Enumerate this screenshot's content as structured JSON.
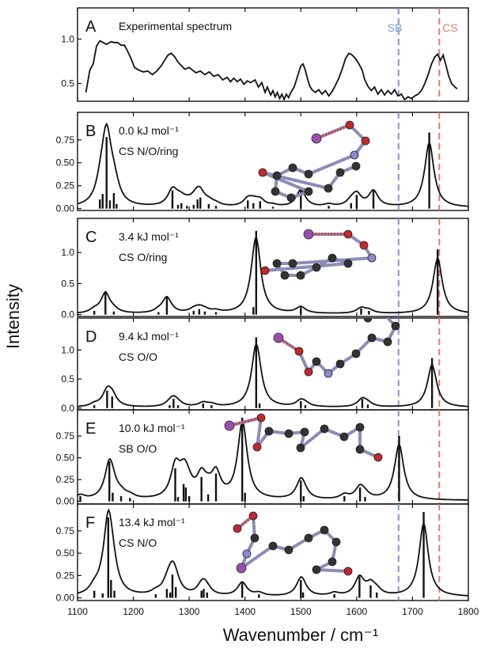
{
  "chart_data": {
    "type": "line",
    "xlabel": "Wavenumber / cm⁻¹",
    "ylabel": "Intensity",
    "xlim": [
      1100,
      1800
    ],
    "x_ticks": [
      "1100",
      "1200",
      "1300",
      "1400",
      "1500",
      "1600",
      "1700",
      "1800"
    ],
    "reference_lines": [
      {
        "label": "SB",
        "x": 1675,
        "color": "#7f96d6"
      },
      {
        "label": "CS",
        "x": 1748,
        "color": "#e47a6a"
      }
    ],
    "panels": [
      {
        "letter": "A",
        "label": "Experimental spectrum",
        "conformer": "",
        "ylim": [
          0.3,
          1.35
        ],
        "y_ticks": [
          "0.5",
          "1.0"
        ],
        "y_tick_values": [
          0.5,
          1.0
        ],
        "experimental": [
          [
            1115,
            0.4
          ],
          [
            1122,
            0.65
          ],
          [
            1128,
            0.72
          ],
          [
            1134,
            0.92
          ],
          [
            1140,
            0.98
          ],
          [
            1146,
            0.96
          ],
          [
            1152,
            0.94
          ],
          [
            1160,
            0.97
          ],
          [
            1166,
            0.96
          ],
          [
            1172,
            0.96
          ],
          [
            1178,
            0.93
          ],
          [
            1184,
            0.93
          ],
          [
            1190,
            0.86
          ],
          [
            1196,
            0.78
          ],
          [
            1202,
            0.68
          ],
          [
            1210,
            0.65
          ],
          [
            1218,
            0.63
          ],
          [
            1226,
            0.64
          ],
          [
            1234,
            0.6
          ],
          [
            1242,
            0.64
          ],
          [
            1250,
            0.7
          ],
          [
            1256,
            0.76
          ],
          [
            1262,
            0.82
          ],
          [
            1268,
            0.84
          ],
          [
            1274,
            0.8
          ],
          [
            1280,
            0.74
          ],
          [
            1286,
            0.7
          ],
          [
            1292,
            0.66
          ],
          [
            1300,
            0.68
          ],
          [
            1306,
            0.65
          ],
          [
            1312,
            0.62
          ],
          [
            1320,
            0.64
          ],
          [
            1328,
            0.6
          ],
          [
            1336,
            0.63
          ],
          [
            1344,
            0.58
          ],
          [
            1352,
            0.6
          ],
          [
            1360,
            0.54
          ],
          [
            1368,
            0.57
          ],
          [
            1374,
            0.52
          ],
          [
            1380,
            0.56
          ],
          [
            1386,
            0.52
          ],
          [
            1392,
            0.55
          ],
          [
            1398,
            0.49
          ],
          [
            1404,
            0.53
          ],
          [
            1410,
            0.51
          ],
          [
            1418,
            0.54
          ],
          [
            1424,
            0.46
          ],
          [
            1430,
            0.51
          ],
          [
            1436,
            0.4
          ],
          [
            1440,
            0.46
          ],
          [
            1446,
            0.37
          ],
          [
            1450,
            0.42
          ],
          [
            1454,
            0.35
          ],
          [
            1458,
            0.4
          ],
          [
            1462,
            0.33
          ],
          [
            1466,
            0.38
          ],
          [
            1470,
            0.32
          ],
          [
            1474,
            0.38
          ],
          [
            1478,
            0.34
          ],
          [
            1482,
            0.4
          ],
          [
            1488,
            0.46
          ],
          [
            1494,
            0.58
          ],
          [
            1500,
            0.7
          ],
          [
            1504,
            0.72
          ],
          [
            1508,
            0.65
          ],
          [
            1512,
            0.55
          ],
          [
            1516,
            0.47
          ],
          [
            1520,
            0.43
          ],
          [
            1526,
            0.4
          ],
          [
            1532,
            0.43
          ],
          [
            1538,
            0.38
          ],
          [
            1544,
            0.42
          ],
          [
            1550,
            0.36
          ],
          [
            1556,
            0.41
          ],
          [
            1562,
            0.48
          ],
          [
            1568,
            0.56
          ],
          [
            1574,
            0.66
          ],
          [
            1580,
            0.78
          ],
          [
            1586,
            0.84
          ],
          [
            1592,
            0.82
          ],
          [
            1598,
            0.78
          ],
          [
            1604,
            0.72
          ],
          [
            1610,
            0.65
          ],
          [
            1614,
            0.55
          ],
          [
            1620,
            0.47
          ],
          [
            1626,
            0.42
          ],
          [
            1632,
            0.46
          ],
          [
            1638,
            0.38
          ],
          [
            1644,
            0.43
          ],
          [
            1650,
            0.37
          ],
          [
            1656,
            0.42
          ],
          [
            1662,
            0.38
          ],
          [
            1668,
            0.43
          ],
          [
            1674,
            0.36
          ],
          [
            1680,
            0.38
          ],
          [
            1686,
            0.32
          ],
          [
            1692,
            0.35
          ],
          [
            1698,
            0.33
          ],
          [
            1704,
            0.36
          ],
          [
            1710,
            0.38
          ],
          [
            1716,
            0.42
          ],
          [
            1722,
            0.5
          ],
          [
            1728,
            0.6
          ],
          [
            1734,
            0.72
          ],
          [
            1740,
            0.8
          ],
          [
            1745,
            0.83
          ],
          [
            1750,
            0.76
          ],
          [
            1755,
            0.82
          ],
          [
            1760,
            0.7
          ],
          [
            1765,
            0.58
          ],
          [
            1770,
            0.5
          ],
          [
            1776,
            0.46
          ],
          [
            1780,
            0.44
          ]
        ],
        "sticks": [],
        "molecule": ""
      },
      {
        "letter": "B",
        "label": "0.0 kJ mol⁻¹",
        "conformer": "CS N/O/ring",
        "ylim": [
          -0.02,
          1.05
        ],
        "y_ticks": [
          "0.00",
          "0.25",
          "0.50",
          "0.75"
        ],
        "y_tick_values": [
          0.0,
          0.25,
          0.5,
          0.75
        ],
        "sticks": [
          [
            1140,
            0.1
          ],
          [
            1145,
            0.16
          ],
          [
            1152,
            0.78
          ],
          [
            1158,
            0.09
          ],
          [
            1165,
            0.17
          ],
          [
            1170,
            0.05
          ],
          [
            1270,
            0.2
          ],
          [
            1280,
            0.04
          ],
          [
            1286,
            0.06
          ],
          [
            1296,
            0.03
          ],
          [
            1308,
            0.04
          ],
          [
            1315,
            0.1
          ],
          [
            1320,
            0.12
          ],
          [
            1335,
            0.05
          ],
          [
            1348,
            0.03
          ],
          [
            1405,
            0.09
          ],
          [
            1415,
            0.06
          ],
          [
            1427,
            0.08
          ],
          [
            1450,
            0.02
          ],
          [
            1500,
            0.22
          ],
          [
            1550,
            0.03
          ],
          [
            1590,
            0.06
          ],
          [
            1600,
            0.15
          ],
          [
            1630,
            0.2
          ],
          [
            1730,
            0.83
          ]
        ],
        "molecule": "B"
      },
      {
        "letter": "C",
        "label": "3.4 kJ mol⁻¹",
        "conformer": "CS O/ring",
        "ylim": [
          -0.03,
          1.55
        ],
        "y_ticks": [
          "0.0",
          "0.5",
          "1.0"
        ],
        "y_tick_values": [
          0.0,
          0.5,
          1.0
        ],
        "sticks": [
          [
            1130,
            0.06
          ],
          [
            1150,
            0.38
          ],
          [
            1165,
            0.05
          ],
          [
            1245,
            0.04
          ],
          [
            1260,
            0.3
          ],
          [
            1308,
            0.06
          ],
          [
            1318,
            0.09
          ],
          [
            1328,
            0.05
          ],
          [
            1348,
            0.04
          ],
          [
            1420,
            1.35
          ],
          [
            1415,
            0.12
          ],
          [
            1500,
            0.12
          ],
          [
            1608,
            0.1
          ],
          [
            1622,
            0.06
          ],
          [
            1745,
            1.05
          ]
        ],
        "molecule": "C"
      },
      {
        "letter": "D",
        "label": "9.4 kJ mol⁻¹",
        "conformer": "CS O/O",
        "ylim": [
          -0.03,
          1.55
        ],
        "y_ticks": [
          "0.0",
          "0.5",
          "1.0"
        ],
        "y_tick_values": [
          0.0,
          0.5,
          1.0
        ],
        "sticks": [
          [
            1130,
            0.05
          ],
          [
            1153,
            0.3
          ],
          [
            1162,
            0.2
          ],
          [
            1265,
            0.05
          ],
          [
            1272,
            0.16
          ],
          [
            1280,
            0.05
          ],
          [
            1325,
            0.08
          ],
          [
            1340,
            0.05
          ],
          [
            1420,
            1.22
          ],
          [
            1426,
            0.08
          ],
          [
            1500,
            0.12
          ],
          [
            1508,
            0.05
          ],
          [
            1610,
            0.16
          ],
          [
            1620,
            0.06
          ],
          [
            1735,
            0.86
          ]
        ],
        "molecule": "D"
      },
      {
        "letter": "E",
        "label": "10.0 kJ mol⁻¹",
        "conformer": "SB O/O",
        "ylim": [
          -0.03,
          1.05
        ],
        "y_ticks": [
          "0.00",
          "0.25",
          "0.50",
          "0.75"
        ],
        "y_tick_values": [
          0.0,
          0.25,
          0.5,
          0.75
        ],
        "sticks": [
          [
            1105,
            0.06
          ],
          [
            1157,
            0.46
          ],
          [
            1163,
            0.1
          ],
          [
            1178,
            0.06
          ],
          [
            1194,
            0.04
          ],
          [
            1275,
            0.38
          ],
          [
            1280,
            0.05
          ],
          [
            1290,
            0.2
          ],
          [
            1294,
            0.16
          ],
          [
            1300,
            0.06
          ],
          [
            1322,
            0.28
          ],
          [
            1334,
            0.08
          ],
          [
            1348,
            0.32
          ],
          [
            1395,
            0.96
          ],
          [
            1400,
            0.1
          ],
          [
            1500,
            0.24
          ],
          [
            1505,
            0.06
          ],
          [
            1578,
            0.06
          ],
          [
            1606,
            0.16
          ],
          [
            1615,
            0.05
          ],
          [
            1676,
            0.75
          ]
        ],
        "molecule": "E"
      },
      {
        "letter": "F",
        "label": "13.4 kJ mol⁻¹",
        "conformer": "CS N/O",
        "ylim": [
          -0.03,
          1.05
        ],
        "y_ticks": [
          "0.00",
          "0.25",
          "0.50",
          "0.75"
        ],
        "y_tick_values": [
          0.0,
          0.25,
          0.5,
          0.75
        ],
        "sticks": [
          [
            1130,
            0.08
          ],
          [
            1145,
            0.05
          ],
          [
            1155,
            0.9
          ],
          [
            1160,
            0.2
          ],
          [
            1166,
            0.08
          ],
          [
            1240,
            0.04
          ],
          [
            1260,
            0.1
          ],
          [
            1266,
            0.06
          ],
          [
            1270,
            0.26
          ],
          [
            1276,
            0.12
          ],
          [
            1322,
            0.08
          ],
          [
            1326,
            0.1
          ],
          [
            1332,
            0.06
          ],
          [
            1395,
            0.18
          ],
          [
            1425,
            0.04
          ],
          [
            1500,
            0.2
          ],
          [
            1504,
            0.06
          ],
          [
            1560,
            0.04
          ],
          [
            1605,
            0.24
          ],
          [
            1625,
            0.14
          ],
          [
            1636,
            0.06
          ],
          [
            1720,
            0.96
          ]
        ],
        "molecule": "F"
      }
    ]
  }
}
